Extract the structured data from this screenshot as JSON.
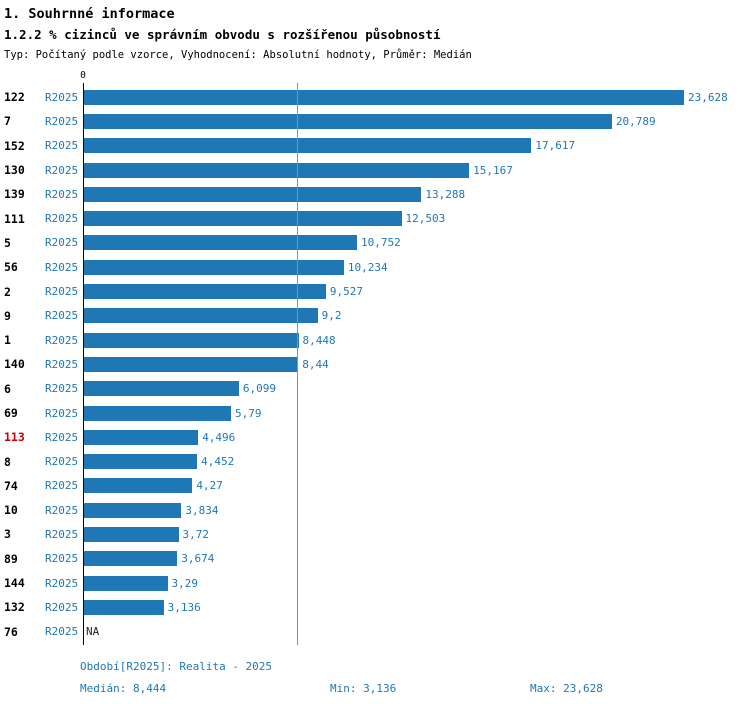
{
  "header": {
    "title": "1. Souhrnné informace",
    "subtitle": "1.2.2 % cizinců ve správním obvodu s rozšířenou působností",
    "meta": "Typ: Počítaný podle vzorce, Vyhodnocení: Absolutní hodnoty, Průměr: Medián"
  },
  "chart_data": {
    "type": "bar",
    "orientation": "horizontal",
    "title": "1.2.2 % cizinců ve správním obvodu s rozšířenou působností",
    "series_label": "R2025",
    "axis_zero_label": "0",
    "xlim": [
      0,
      23.628
    ],
    "categories": [
      "122",
      "7",
      "152",
      "130",
      "139",
      "111",
      "5",
      "56",
      "2",
      "9",
      "1",
      "140",
      "6",
      "69",
      "113",
      "8",
      "74",
      "10",
      "3",
      "89",
      "144",
      "132",
      "76"
    ],
    "values": [
      23.628,
      20.789,
      17.617,
      15.167,
      13.288,
      12.503,
      10.752,
      10.234,
      9.527,
      9.2,
      8.448,
      8.44,
      6.099,
      5.79,
      4.496,
      4.452,
      4.27,
      3.834,
      3.72,
      3.674,
      3.29,
      3.136,
      null
    ],
    "value_labels": [
      "23,628",
      "20,789",
      "17,617",
      "15,167",
      "13,288",
      "12,503",
      "10,752",
      "10,234",
      "9,527",
      "9,2",
      "8,448",
      "8,44",
      "6,099",
      "5,79",
      "4,496",
      "4,452",
      "4,27",
      "3,834",
      "3,72",
      "3,674",
      "3,29",
      "3,136",
      "NA"
    ],
    "highlighted_category": "113",
    "median": 8.444,
    "min": 3.136,
    "max": 23.628,
    "colors": {
      "bar": "#1f77b4",
      "label_blue": "#1f77b4",
      "highlight_red": "#cc0000",
      "median_line": "#5b9ec9"
    }
  },
  "footer": {
    "period": "Období[R2025]: Realita - 2025",
    "median": "Medián: 8,444",
    "min": "Min: 3,136",
    "max": "Max: 23,628"
  }
}
